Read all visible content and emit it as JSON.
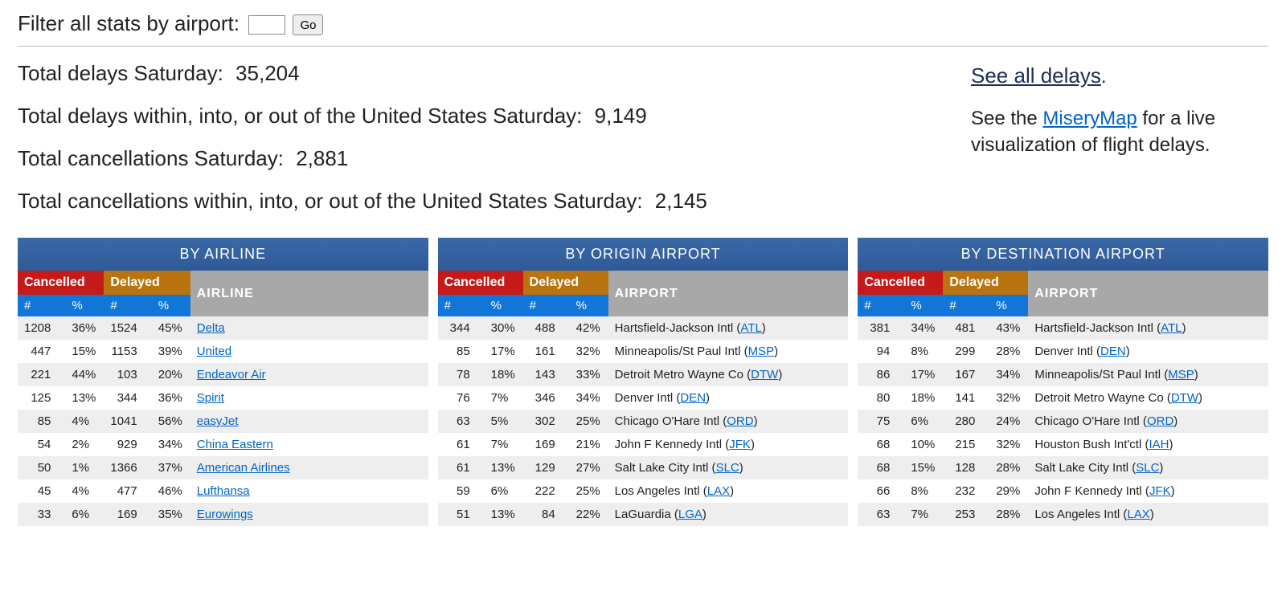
{
  "filter": {
    "label": "Filter all stats by airport:",
    "go_label": "Go",
    "input_value": ""
  },
  "summary": {
    "lines": [
      {
        "label": "Total delays Saturday:",
        "value": "35,204"
      },
      {
        "label": "Total delays within, into, or out of the United States Saturday:",
        "value": "9,149"
      },
      {
        "label": "Total cancellations Saturday:",
        "value": "2,881"
      },
      {
        "label": "Total cancellations within, into, or out of the United States Saturday:",
        "value": "2,145"
      }
    ],
    "all_delays_text": "See all delays",
    "misery_pre": "See the ",
    "misery_link": "MiseryMap",
    "misery_post": " for a live visualization of flight delays."
  },
  "colors": {
    "header_blue": "#3a69a8",
    "cancelled_red": "#c61919",
    "delayed_orange": "#b9740f",
    "blue2": "#1176d8",
    "grey": "#a8a8a8",
    "link": "#0064c8",
    "row_alt": "#eeeeee"
  },
  "tables": [
    {
      "title": "BY AIRLINE",
      "name_header": "AIRLINE",
      "cancelled_label": "Cancelled",
      "delayed_label": "Delayed",
      "hash": "#",
      "pct": "%",
      "name_is_link_only": true,
      "rows": [
        {
          "cn": "1208",
          "cp": "36%",
          "dn": "1524",
          "dp": "45%",
          "link": "Delta"
        },
        {
          "cn": "447",
          "cp": "15%",
          "dn": "1153",
          "dp": "39%",
          "link": "United"
        },
        {
          "cn": "221",
          "cp": "44%",
          "dn": "103",
          "dp": "20%",
          "link": "Endeavor Air"
        },
        {
          "cn": "125",
          "cp": "13%",
          "dn": "344",
          "dp": "36%",
          "link": "Spirit"
        },
        {
          "cn": "85",
          "cp": "4%",
          "dn": "1041",
          "dp": "56%",
          "link": "easyJet"
        },
        {
          "cn": "54",
          "cp": "2%",
          "dn": "929",
          "dp": "34%",
          "link": "China Eastern"
        },
        {
          "cn": "50",
          "cp": "1%",
          "dn": "1366",
          "dp": "37%",
          "link": "American Airlines"
        },
        {
          "cn": "45",
          "cp": "4%",
          "dn": "477",
          "dp": "46%",
          "link": "Lufthansa"
        },
        {
          "cn": "33",
          "cp": "6%",
          "dn": "169",
          "dp": "35%",
          "link": "Eurowings"
        }
      ]
    },
    {
      "title": "BY ORIGIN AIRPORT",
      "name_header": "AIRPORT",
      "cancelled_label": "Cancelled",
      "delayed_label": "Delayed",
      "hash": "#",
      "pct": "%",
      "name_is_link_only": false,
      "rows": [
        {
          "cn": "344",
          "cp": "30%",
          "dn": "488",
          "dp": "42%",
          "pre": "Hartsfield-Jackson Intl (",
          "link": "ATL",
          "post": ")"
        },
        {
          "cn": "85",
          "cp": "17%",
          "dn": "161",
          "dp": "32%",
          "pre": "Minneapolis/St Paul Intl (",
          "link": "MSP",
          "post": ")"
        },
        {
          "cn": "78",
          "cp": "18%",
          "dn": "143",
          "dp": "33%",
          "pre": "Detroit Metro Wayne Co (",
          "link": "DTW",
          "post": ")"
        },
        {
          "cn": "76",
          "cp": "7%",
          "dn": "346",
          "dp": "34%",
          "pre": "Denver Intl (",
          "link": "DEN",
          "post": ")"
        },
        {
          "cn": "63",
          "cp": "5%",
          "dn": "302",
          "dp": "25%",
          "pre": "Chicago O'Hare Intl (",
          "link": "ORD",
          "post": ")"
        },
        {
          "cn": "61",
          "cp": "7%",
          "dn": "169",
          "dp": "21%",
          "pre": "John F Kennedy Intl (",
          "link": "JFK",
          "post": ")"
        },
        {
          "cn": "61",
          "cp": "13%",
          "dn": "129",
          "dp": "27%",
          "pre": "Salt Lake City Intl (",
          "link": "SLC",
          "post": ")"
        },
        {
          "cn": "59",
          "cp": "6%",
          "dn": "222",
          "dp": "25%",
          "pre": "Los Angeles Intl (",
          "link": "LAX",
          "post": ")"
        },
        {
          "cn": "51",
          "cp": "13%",
          "dn": "84",
          "dp": "22%",
          "pre": "LaGuardia (",
          "link": "LGA",
          "post": ")"
        }
      ]
    },
    {
      "title": "BY DESTINATION AIRPORT",
      "name_header": "AIRPORT",
      "cancelled_label": "Cancelled",
      "delayed_label": "Delayed",
      "hash": "#",
      "pct": "%",
      "name_is_link_only": false,
      "rows": [
        {
          "cn": "381",
          "cp": "34%",
          "dn": "481",
          "dp": "43%",
          "pre": "Hartsfield-Jackson Intl (",
          "link": "ATL",
          "post": ")"
        },
        {
          "cn": "94",
          "cp": "8%",
          "dn": "299",
          "dp": "28%",
          "pre": "Denver Intl (",
          "link": "DEN",
          "post": ")"
        },
        {
          "cn": "86",
          "cp": "17%",
          "dn": "167",
          "dp": "34%",
          "pre": "Minneapolis/St Paul Intl (",
          "link": "MSP",
          "post": ")"
        },
        {
          "cn": "80",
          "cp": "18%",
          "dn": "141",
          "dp": "32%",
          "pre": "Detroit Metro Wayne Co (",
          "link": "DTW",
          "post": ")"
        },
        {
          "cn": "75",
          "cp": "6%",
          "dn": "280",
          "dp": "24%",
          "pre": "Chicago O'Hare Intl (",
          "link": "ORD",
          "post": ")"
        },
        {
          "cn": "68",
          "cp": "10%",
          "dn": "215",
          "dp": "32%",
          "pre": "Houston Bush Int'ctl (",
          "link": "IAH",
          "post": ")"
        },
        {
          "cn": "68",
          "cp": "15%",
          "dn": "128",
          "dp": "28%",
          "pre": "Salt Lake City Intl (",
          "link": "SLC",
          "post": ")"
        },
        {
          "cn": "66",
          "cp": "8%",
          "dn": "232",
          "dp": "29%",
          "pre": "John F Kennedy Intl (",
          "link": "JFK",
          "post": ")"
        },
        {
          "cn": "63",
          "cp": "7%",
          "dn": "253",
          "dp": "28%",
          "pre": "Los Angeles Intl (",
          "link": "LAX",
          "post": ")"
        }
      ]
    }
  ]
}
